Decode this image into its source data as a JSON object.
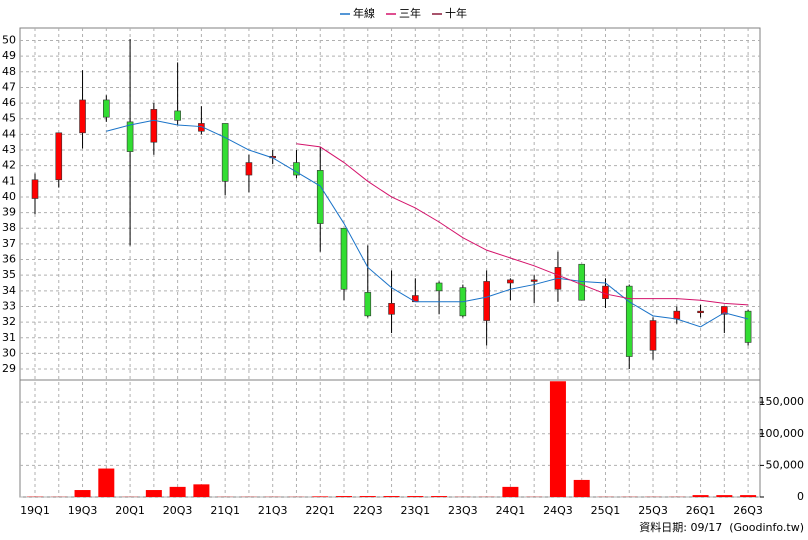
{
  "chart_data": {
    "type": "candlestick",
    "categories": [
      "19Q1",
      null,
      "19Q3",
      null,
      "20Q1",
      null,
      "20Q3",
      null,
      "21Q1",
      null,
      "21Q3",
      null,
      "22Q1",
      null,
      "22Q3",
      null,
      "23Q1",
      null,
      "23Q3",
      null,
      "24Q1",
      null,
      "24Q3",
      null,
      "25Q1",
      null,
      "25Q3",
      null,
      "26Q1",
      null,
      "26Q3"
    ],
    "open": [
      39.9,
      41.1,
      44.1,
      46.2,
      44.8,
      43.5,
      45.5,
      44.2,
      44.7,
      41.4,
      42.5,
      42.2,
      41.7,
      38.0,
      33.9,
      32.5,
      33.3,
      34.5,
      34.2,
      32.1,
      34.5,
      34.6,
      34.1,
      35.7,
      33.5,
      34.3,
      30.2,
      32.2,
      32.6,
      32.5,
      32.7
    ],
    "high": [
      41.5,
      44.1,
      48.1,
      46.5,
      50.1,
      46.0,
      48.6,
      45.8,
      44.7,
      42.7,
      43.0,
      43.0,
      43.2,
      38.0,
      36.9,
      35.3,
      34.8,
      34.6,
      34.4,
      35.3,
      34.8,
      35.0,
      36.5,
      35.7,
      34.8,
      34.4,
      32.3,
      33.0,
      33.1,
      33.0,
      32.8
    ],
    "low": [
      38.9,
      40.6,
      43.1,
      44.8,
      36.9,
      42.7,
      44.6,
      44.0,
      40.1,
      40.3,
      42.1,
      41.2,
      36.5,
      33.4,
      32.3,
      31.3,
      33.3,
      32.5,
      32.3,
      30.5,
      33.4,
      33.2,
      33.3,
      33.4,
      32.9,
      29.0,
      29.6,
      31.9,
      32.3,
      31.3,
      30.5
    ],
    "close": [
      41.1,
      44.1,
      46.2,
      45.1,
      42.9,
      45.6,
      44.9,
      44.7,
      41.0,
      42.2,
      42.6,
      41.4,
      38.3,
      34.1,
      32.4,
      33.2,
      33.7,
      34.0,
      32.4,
      34.6,
      34.7,
      34.7,
      35.5,
      33.4,
      34.3,
      29.8,
      32.1,
      32.7,
      32.7,
      33.0,
      30.7
    ],
    "up_color": "#ff0000",
    "down_color": "#33dd33",
    "series": [
      {
        "name": "年線",
        "color": "#1a73c8",
        "values": [
          null,
          null,
          null,
          44.2,
          44.6,
          44.9,
          44.6,
          44.5,
          43.8,
          43.0,
          42.5,
          41.6,
          40.7,
          38.3,
          35.5,
          34.2,
          33.3,
          33.3,
          33.3,
          33.6,
          34.1,
          34.4,
          34.8,
          34.6,
          34.5,
          33.3,
          32.4,
          32.2,
          31.7,
          32.6,
          32.2
        ]
      },
      {
        "name": "三年",
        "color": "#d4136b",
        "values": [
          null,
          null,
          null,
          null,
          null,
          null,
          null,
          null,
          null,
          null,
          null,
          43.4,
          43.2,
          42.2,
          41.0,
          40.0,
          39.3,
          38.4,
          37.4,
          36.6,
          36.1,
          35.6,
          35.0,
          34.4,
          33.8,
          33.5,
          33.5,
          33.5,
          33.4,
          33.2,
          33.1
        ]
      },
      {
        "name": "十年",
        "color": "#8b1a3a",
        "values": [
          null,
          null,
          null,
          null,
          null,
          null,
          null,
          null,
          null,
          null,
          null,
          null,
          null,
          null,
          null,
          null,
          null,
          null,
          null,
          null,
          null,
          null,
          null,
          null,
          null,
          null,
          null,
          null,
          null,
          null,
          null
        ]
      }
    ],
    "ylim": [
      28.3,
      50.8
    ],
    "yticks": [
      29,
      30,
      31,
      32,
      33,
      34,
      35,
      36,
      37,
      38,
      39,
      40,
      41,
      42,
      43,
      44,
      45,
      46,
      47,
      48,
      49,
      50
    ],
    "grid": true,
    "volume": {
      "type": "bar",
      "color": "#ff0000",
      "values": [
        500,
        300,
        11000,
        45000,
        300,
        11000,
        16000,
        20000,
        300,
        300,
        300,
        300,
        1000,
        1500,
        1500,
        1500,
        1500,
        1500,
        300,
        300,
        16000,
        300,
        183000,
        27000,
        300,
        300,
        300,
        300,
        3000,
        3000,
        3000
      ],
      "ylim": [
        0,
        185000
      ],
      "yticks": [
        0,
        {
          "value": 50000,
          "label": "50,000"
        },
        {
          "value": 100000,
          "label": "100,000"
        },
        {
          "value": 150000,
          "label": "150,000"
        }
      ]
    },
    "footer": "資料日期: 09/17  (Goodinfo.tw)"
  }
}
